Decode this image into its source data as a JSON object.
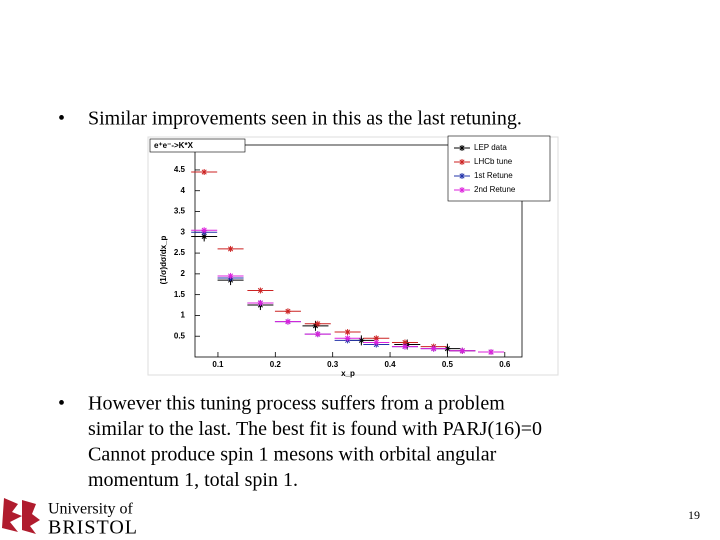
{
  "slide": {
    "bullets": [
      {
        "lines": [
          "Similar improvements seen in this as the last retuning."
        ]
      },
      {
        "lines": [
          "However this tuning process suffers from a problem",
          "similar to the last.  The best fit is found with PARJ(16)=0",
          "Cannot produce spin 1 mesons with orbital angular",
          "momentum 1, total spin 1."
        ]
      }
    ],
    "logo": [
      "University of",
      "BRISTOL"
    ],
    "page_number": "19"
  },
  "chart_data": {
    "type": "scatter",
    "title": "e⁺e⁻->K*X",
    "x_label": "x_p",
    "y_label": "(1/σ)dσ/dx_p",
    "xlim": [
      0.06,
      0.63
    ],
    "ylim": [
      0,
      5.1
    ],
    "xticks": [
      0.1,
      0.2,
      0.3,
      0.4,
      0.5,
      0.6
    ],
    "yticks": [
      0.5,
      1,
      1.5,
      2,
      2.5,
      3,
      3.5,
      4,
      4.5
    ],
    "legend": "top-right",
    "series": [
      {
        "name": "LEP data",
        "color": "#000000",
        "x": [
          0.076,
          0.122,
          0.174,
          0.27,
          0.35,
          0.43,
          0.5
        ],
        "values": [
          2.9,
          1.85,
          1.25,
          0.75,
          0.4,
          0.3,
          0.2
        ]
      },
      {
        "name": "LHCb tune",
        "color": "#cc2222",
        "x": [
          0.076,
          0.122,
          0.174,
          0.222,
          0.274,
          0.326,
          0.376,
          0.426,
          0.476,
          0.526,
          0.576
        ],
        "values": [
          4.45,
          2.6,
          1.6,
          1.1,
          0.8,
          0.6,
          0.45,
          0.35,
          0.25,
          0.15,
          0.12
        ]
      },
      {
        "name": "1st Retune",
        "color": "#2233aa",
        "x": [
          0.076,
          0.122,
          0.174,
          0.222,
          0.274,
          0.326,
          0.376,
          0.426,
          0.476,
          0.526,
          0.576
        ],
        "values": [
          3.0,
          1.9,
          1.3,
          0.85,
          0.55,
          0.4,
          0.3,
          0.25,
          0.2,
          0.15,
          0.12
        ]
      },
      {
        "name": "2nd Retune",
        "color": "#dd22dd",
        "x": [
          0.076,
          0.122,
          0.174,
          0.222,
          0.274,
          0.326,
          0.376,
          0.426,
          0.476,
          0.526,
          0.576
        ],
        "values": [
          3.05,
          1.95,
          1.3,
          0.85,
          0.55,
          0.45,
          0.35,
          0.25,
          0.2,
          0.15,
          0.12
        ]
      }
    ]
  }
}
